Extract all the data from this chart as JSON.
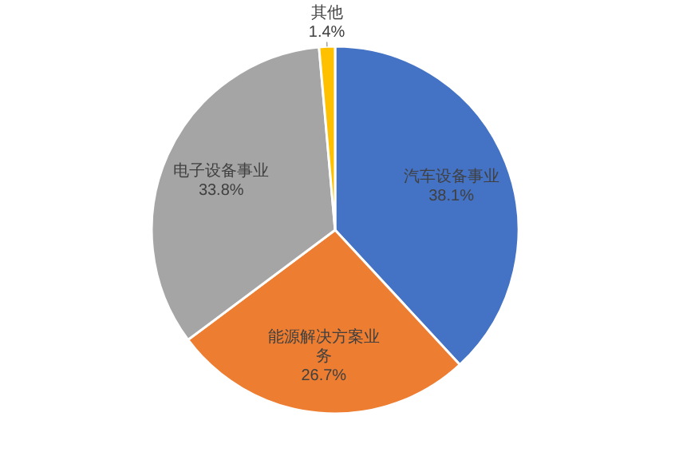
{
  "chart_data": {
    "type": "pie",
    "categories": [
      "汽车设备事业",
      "能源解决方案业务",
      "电子设备事业",
      "其他"
    ],
    "values": [
      38.1,
      26.7,
      33.8,
      1.4
    ],
    "value_labels": [
      "38.1%",
      "26.7%",
      "33.8%",
      "1.4%"
    ],
    "colors": [
      "#4472c4",
      "#ed7d31",
      "#a5a5a5",
      "#ffc000"
    ]
  }
}
